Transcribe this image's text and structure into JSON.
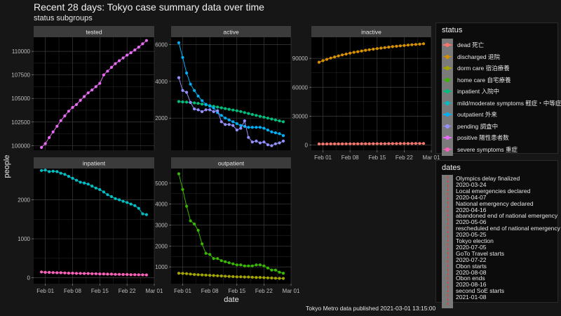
{
  "title": "Recent 28 days: Tokyo case summary data over time",
  "subtitle": "status subgroups",
  "caption": "Tokyo Metro data published 2021-03-01 13:15:00",
  "status_legend": {
    "title": "status",
    "items": [
      {
        "label": "dead 死亡",
        "color": "#F8766D"
      },
      {
        "label": "discharged 退院",
        "color": "#D89000"
      },
      {
        "label": "dorm care 宿泊療養",
        "color": "#A3A500"
      },
      {
        "label": "home care 自宅療養",
        "color": "#39B600"
      },
      {
        "label": "inpatient 入院中",
        "color": "#00BF7D"
      },
      {
        "label": "mild/moderate symptoms 軽症・中等症",
        "color": "#00BFC4"
      },
      {
        "label": "outpatient 外来",
        "color": "#00B0F6"
      },
      {
        "label": "pending 調査中",
        "color": "#9590FF"
      },
      {
        "label": "positive 陽性患者数",
        "color": "#E76BF3"
      },
      {
        "label": "severe symptoms 重症",
        "color": "#FF62BC"
      }
    ]
  },
  "dates_legend": {
    "title": "dates",
    "line_color": "#ff2a2a",
    "lines": [
      "Olympics delay finalized",
      "2020-03-24",
      "Local emergencies declared",
      "2020-04-07",
      "National emergency declared",
      "2020-04-16",
      "abandoned end of national emergency",
      "2020-05-06",
      "rescheduled end of national emergency",
      "2020-05-25",
      "Tokyo election",
      "2020-07-05",
      "GoTo Travel starts",
      "2020-07-22",
      "Obon starts",
      "2020-08-08",
      "Obon ends",
      "2020-08-16",
      "second SoE starts",
      "2021-01-08"
    ]
  },
  "chart_data": {
    "type": "line",
    "xlabel": "date",
    "ylabel": "people",
    "x_range": [
      "2021-01-29",
      "2021-03-01"
    ],
    "x_ticks": [
      "Feb 01",
      "Feb 08",
      "Feb 15",
      "Feb 22",
      "Mar 01"
    ],
    "dates": [
      "2021-01-31",
      "2021-02-01",
      "2021-02-02",
      "2021-02-03",
      "2021-02-04",
      "2021-02-05",
      "2021-02-06",
      "2021-02-07",
      "2021-02-08",
      "2021-02-09",
      "2021-02-10",
      "2021-02-11",
      "2021-02-12",
      "2021-02-13",
      "2021-02-14",
      "2021-02-15",
      "2021-02-16",
      "2021-02-17",
      "2021-02-18",
      "2021-02-19",
      "2021-02-20",
      "2021-02-21",
      "2021-02-22",
      "2021-02-23",
      "2021-02-24",
      "2021-02-25",
      "2021-02-26",
      "2021-02-27"
    ],
    "panels": [
      {
        "name": "tested",
        "ylim": [
          99500,
          111500
        ],
        "y_ticks": [
          100000,
          102500,
          105000,
          107500,
          110000
        ],
        "show_x_ticks": false,
        "series": [
          {
            "status": "positive 陽性患者数",
            "color": "#E76BF3",
            "values": [
              99800,
              100200,
              100850,
              101450,
              102050,
              102650,
              103150,
              103650,
              104050,
              104350,
              104800,
              105200,
              105600,
              105900,
              106250,
              106600,
              107500,
              107900,
              108300,
              108700,
              109000,
              109300,
              109600,
              109850,
              110150,
              110450,
              110800,
              111150
            ]
          }
        ]
      },
      {
        "name": "active",
        "ylim": [
          250,
          6400
        ],
        "y_ticks": [
          2000,
          4000,
          6000
        ],
        "show_x_ticks": false,
        "series": [
          {
            "status": "inpatient 入院中",
            "color": "#00BF7D",
            "values": [
              2900,
              2880,
              2870,
              2850,
              2830,
              2800,
              2760,
              2720,
              2680,
              2640,
              2600,
              2560,
              2520,
              2480,
              2440,
              2400,
              2360,
              2300,
              2250,
              2200,
              2150,
              2100,
              2050,
              2000,
              1950,
              1900,
              1850,
              1800
            ]
          },
          {
            "status": "outpatient 外来",
            "color": "#00B0F6",
            "values": [
              6100,
              5300,
              4450,
              3850,
              3500,
              3200,
              2950,
              2750,
              2650,
              2550,
              2300,
              2150,
              2000,
              1900,
              1800,
              1700,
              1600,
              1550,
              1500,
              1500,
              1500,
              1500,
              1450,
              1350,
              1250,
              1200,
              1150,
              1050
            ]
          },
          {
            "status": "pending 調査中",
            "color": "#9590FF",
            "values": [
              4200,
              3500,
              3400,
              2850,
              2500,
              2450,
              2350,
              2450,
              2450,
              2350,
              2400,
              1800,
              1650,
              1650,
              1600,
              1350,
              1450,
              1850,
              950,
              700,
              750,
              650,
              700,
              550,
              500,
              600,
              650,
              750
            ]
          }
        ]
      },
      {
        "name": "inactive",
        "ylim": [
          -5500,
          112000
        ],
        "y_ticks": [
          0,
          30000,
          60000,
          90000
        ],
        "show_x_ticks": true,
        "series": [
          {
            "status": "dead 死亡",
            "color": "#F8766D",
            "values": [
              1050,
              1070,
              1090,
              1110,
              1130,
              1150,
              1170,
              1190,
              1210,
              1230,
              1250,
              1270,
              1290,
              1310,
              1330,
              1350,
              1370,
              1390,
              1410,
              1430,
              1450,
              1470,
              1490,
              1510,
              1530,
              1550,
              1570,
              1590
            ]
          },
          {
            "status": "discharged 退院",
            "color": "#D89000",
            "values": [
              86000,
              87600,
              89000,
              90300,
              91500,
              92600,
              93600,
              94500,
              95400,
              96300,
              97000,
              97700,
              98400,
              99000,
              99600,
              100200,
              100700,
              101200,
              101700,
              102200,
              102600,
              103000,
              103400,
              103800,
              104200,
              104500,
              104800,
              105200
            ]
          }
        ]
      },
      {
        "name": "inpatient",
        "ylim": [
          -150,
          2800
        ],
        "y_ticks": [
          0,
          1000,
          2000
        ],
        "show_x_ticks": true,
        "series": [
          {
            "status": "mild/moderate symptoms 軽症・中等症",
            "color": "#00BFC4",
            "values": [
              2750,
              2760,
              2720,
              2730,
              2720,
              2680,
              2650,
              2600,
              2550,
              2500,
              2450,
              2430,
              2400,
              2350,
              2300,
              2260,
              2200,
              2130,
              2080,
              2030,
              2000,
              1960,
              1930,
              1890,
              1850,
              1780,
              1640,
              1620
            ]
          },
          {
            "status": "severe symptoms 重症",
            "color": "#FF62BC",
            "values": [
              150,
              140,
              140,
              135,
              130,
              130,
              125,
              120,
              120,
              115,
              115,
              110,
              110,
              105,
              105,
              100,
              100,
              95,
              95,
              90,
              90,
              85,
              85,
              80,
              80,
              78,
              76,
              75
            ]
          }
        ]
      },
      {
        "name": "outpatient",
        "ylim": [
          200,
          5700
        ],
        "y_ticks": [
          1000,
          2000,
          3000,
          4000,
          5000
        ],
        "show_x_ticks": true,
        "series": [
          {
            "status": "dorm care 宿泊療養",
            "color": "#A3A500",
            "values": [
              700,
              690,
              680,
              660,
              640,
              630,
              620,
              610,
              600,
              590,
              580,
              570,
              560,
              550,
              540,
              530,
              530,
              520,
              520,
              510,
              500,
              500,
              490,
              480,
              470,
              460,
              455,
              450
            ]
          },
          {
            "status": "home care 自宅療養",
            "color": "#39B600",
            "values": [
              5450,
              4700,
              3900,
              3200,
              3050,
              2750,
              2100,
              1650,
              1600,
              1400,
              1400,
              1300,
              1250,
              1200,
              1150,
              1100,
              1100,
              1050,
              1050,
              1050,
              1100,
              1100,
              1050,
              950,
              850,
              850,
              750,
              700
            ]
          }
        ]
      }
    ]
  }
}
